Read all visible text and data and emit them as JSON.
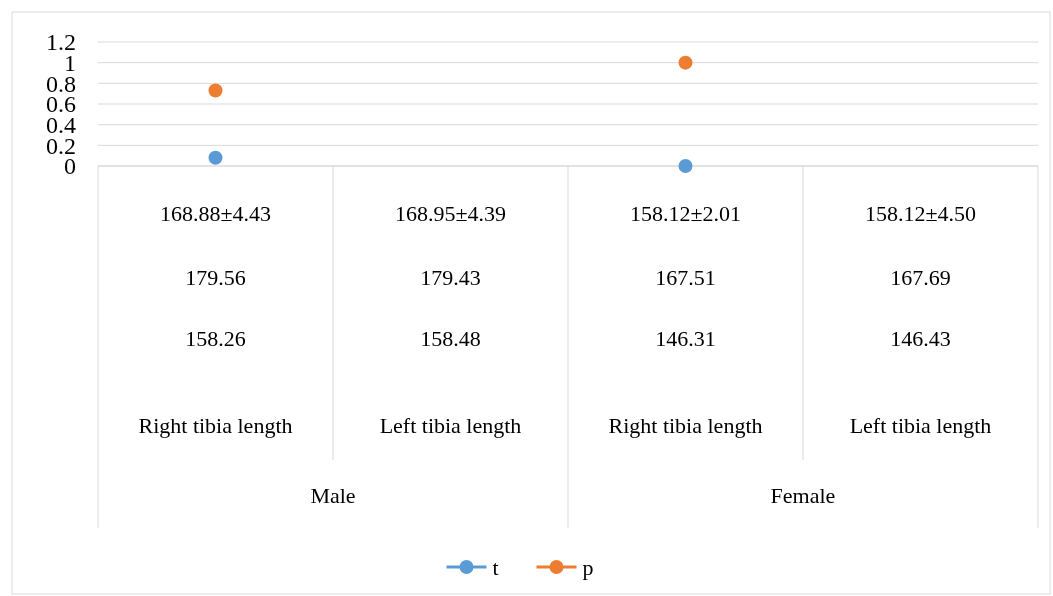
{
  "chart_data": {
    "type": "scatter",
    "categories": [
      "168.88±4.43\n179.56\n158.26\nRight tibia length",
      "168.95±4.39\n179.43\n158.48\nLeft tibia length",
      "158.12±2.01\n167.51\n146.31\nRight tibia length",
      "158.12±4.50\n167.69\n146.43\nLeft tibia length"
    ],
    "series": [
      {
        "name": "t",
        "color": "#5b9bd5",
        "values": [
          0.08,
          null,
          0,
          null
        ]
      },
      {
        "name": "p",
        "color": "#ed7d31",
        "values": [
          0.73,
          null,
          1,
          null
        ]
      }
    ],
    "annotations": [
      "Male",
      "Female"
    ],
    "ylim": [
      0,
      1.2
    ],
    "yticks": [
      0,
      0.2,
      0.4,
      0.6,
      0.8,
      1,
      1.2
    ],
    "grid": "y",
    "legend": "bottom",
    "marker": "circle"
  }
}
